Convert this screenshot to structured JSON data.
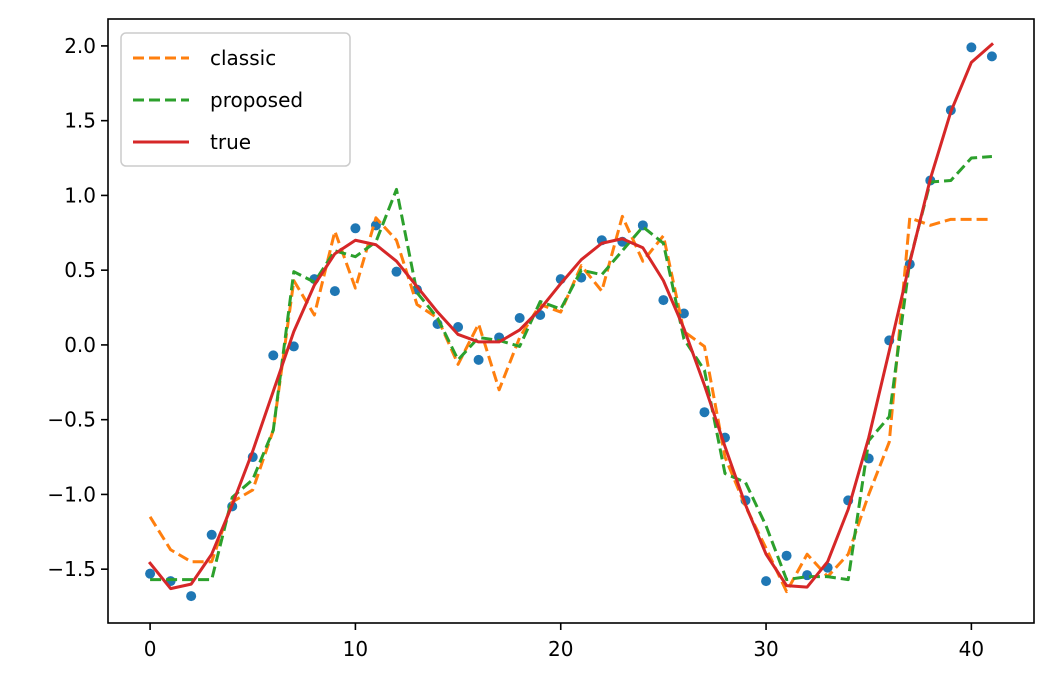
{
  "chart_data": {
    "type": "line",
    "title": "",
    "xlabel": "",
    "ylabel": "",
    "xlim": [
      -2.05,
      43.05
    ],
    "ylim": [
      -1.86,
      2.18
    ],
    "grid": false,
    "legend_position": "top-left",
    "x_ticks": [
      0,
      10,
      20,
      30,
      40
    ],
    "y_ticks": [
      -1.5,
      -1.0,
      -0.5,
      0.0,
      0.5,
      1.0,
      1.5,
      2.0
    ],
    "x_tick_labels": [
      "0",
      "10",
      "20",
      "30",
      "40"
    ],
    "y_tick_labels": [
      "−1.5",
      "−1.0",
      "−0.5",
      "0.0",
      "0.5",
      "1.0",
      "1.5",
      "2.0"
    ],
    "x": [
      0,
      1,
      2,
      3,
      4,
      5,
      6,
      7,
      8,
      9,
      10,
      11,
      12,
      13,
      14,
      15,
      16,
      17,
      18,
      19,
      20,
      21,
      22,
      23,
      24,
      25,
      26,
      27,
      28,
      29,
      30,
      31,
      32,
      33,
      34,
      35,
      36,
      37,
      38,
      39,
      40,
      41
    ],
    "points": {
      "color": "#1f77b4",
      "y": [
        -1.53,
        -1.58,
        -1.68,
        -1.27,
        -1.08,
        -0.75,
        -0.07,
        -0.01,
        0.44,
        0.36,
        0.78,
        0.8,
        0.49,
        0.37,
        0.14,
        0.12,
        -0.1,
        0.05,
        0.18,
        0.2,
        0.44,
        0.45,
        0.7,
        0.69,
        0.8,
        0.3,
        0.21,
        -0.45,
        -0.62,
        -1.04,
        -1.58,
        -1.41,
        -1.54,
        -1.49,
        -1.04,
        -0.76,
        0.03,
        0.54,
        1.1,
        1.57,
        1.99,
        1.93
      ]
    },
    "series": [
      {
        "name": "classic",
        "color": "#ff7f0e",
        "style": "dashed",
        "y": [
          -1.15,
          -1.37,
          -1.45,
          -1.45,
          -1.05,
          -0.97,
          -0.57,
          0.43,
          0.2,
          0.76,
          0.38,
          0.85,
          0.7,
          0.27,
          0.18,
          -0.13,
          0.14,
          -0.3,
          0.05,
          0.27,
          0.22,
          0.53,
          0.36,
          0.86,
          0.56,
          0.73,
          0.09,
          -0.01,
          -0.75,
          -1.08,
          -1.36,
          -1.65,
          -1.4,
          -1.55,
          -1.4,
          -1.0,
          -0.65,
          0.85,
          0.8,
          0.84,
          0.84,
          0.84
        ]
      },
      {
        "name": "proposed",
        "color": "#2ca02c",
        "style": "dashed",
        "y": [
          -1.57,
          -1.57,
          -1.57,
          -1.57,
          -1.02,
          -0.9,
          -0.57,
          0.49,
          0.42,
          0.63,
          0.59,
          0.69,
          1.04,
          0.35,
          0.18,
          -0.1,
          0.05,
          0.03,
          -0.01,
          0.29,
          0.24,
          0.5,
          0.47,
          0.63,
          0.79,
          0.68,
          0.04,
          -0.17,
          -0.86,
          -0.92,
          -1.21,
          -1.57,
          -1.55,
          -1.55,
          -1.57,
          -0.64,
          -0.48,
          0.56,
          1.09,
          1.1,
          1.25,
          1.26
        ]
      },
      {
        "name": "true",
        "color": "#d62728",
        "style": "solid",
        "y": [
          -1.46,
          -1.63,
          -1.6,
          -1.4,
          -1.07,
          -0.71,
          -0.31,
          0.09,
          0.4,
          0.61,
          0.7,
          0.67,
          0.56,
          0.39,
          0.22,
          0.07,
          0.02,
          0.02,
          0.1,
          0.24,
          0.41,
          0.57,
          0.68,
          0.71,
          0.65,
          0.43,
          0.11,
          -0.27,
          -0.68,
          -1.07,
          -1.4,
          -1.61,
          -1.62,
          -1.45,
          -1.1,
          -0.62,
          -0.04,
          0.55,
          1.11,
          1.56,
          1.89,
          2.01
        ]
      }
    ]
  }
}
